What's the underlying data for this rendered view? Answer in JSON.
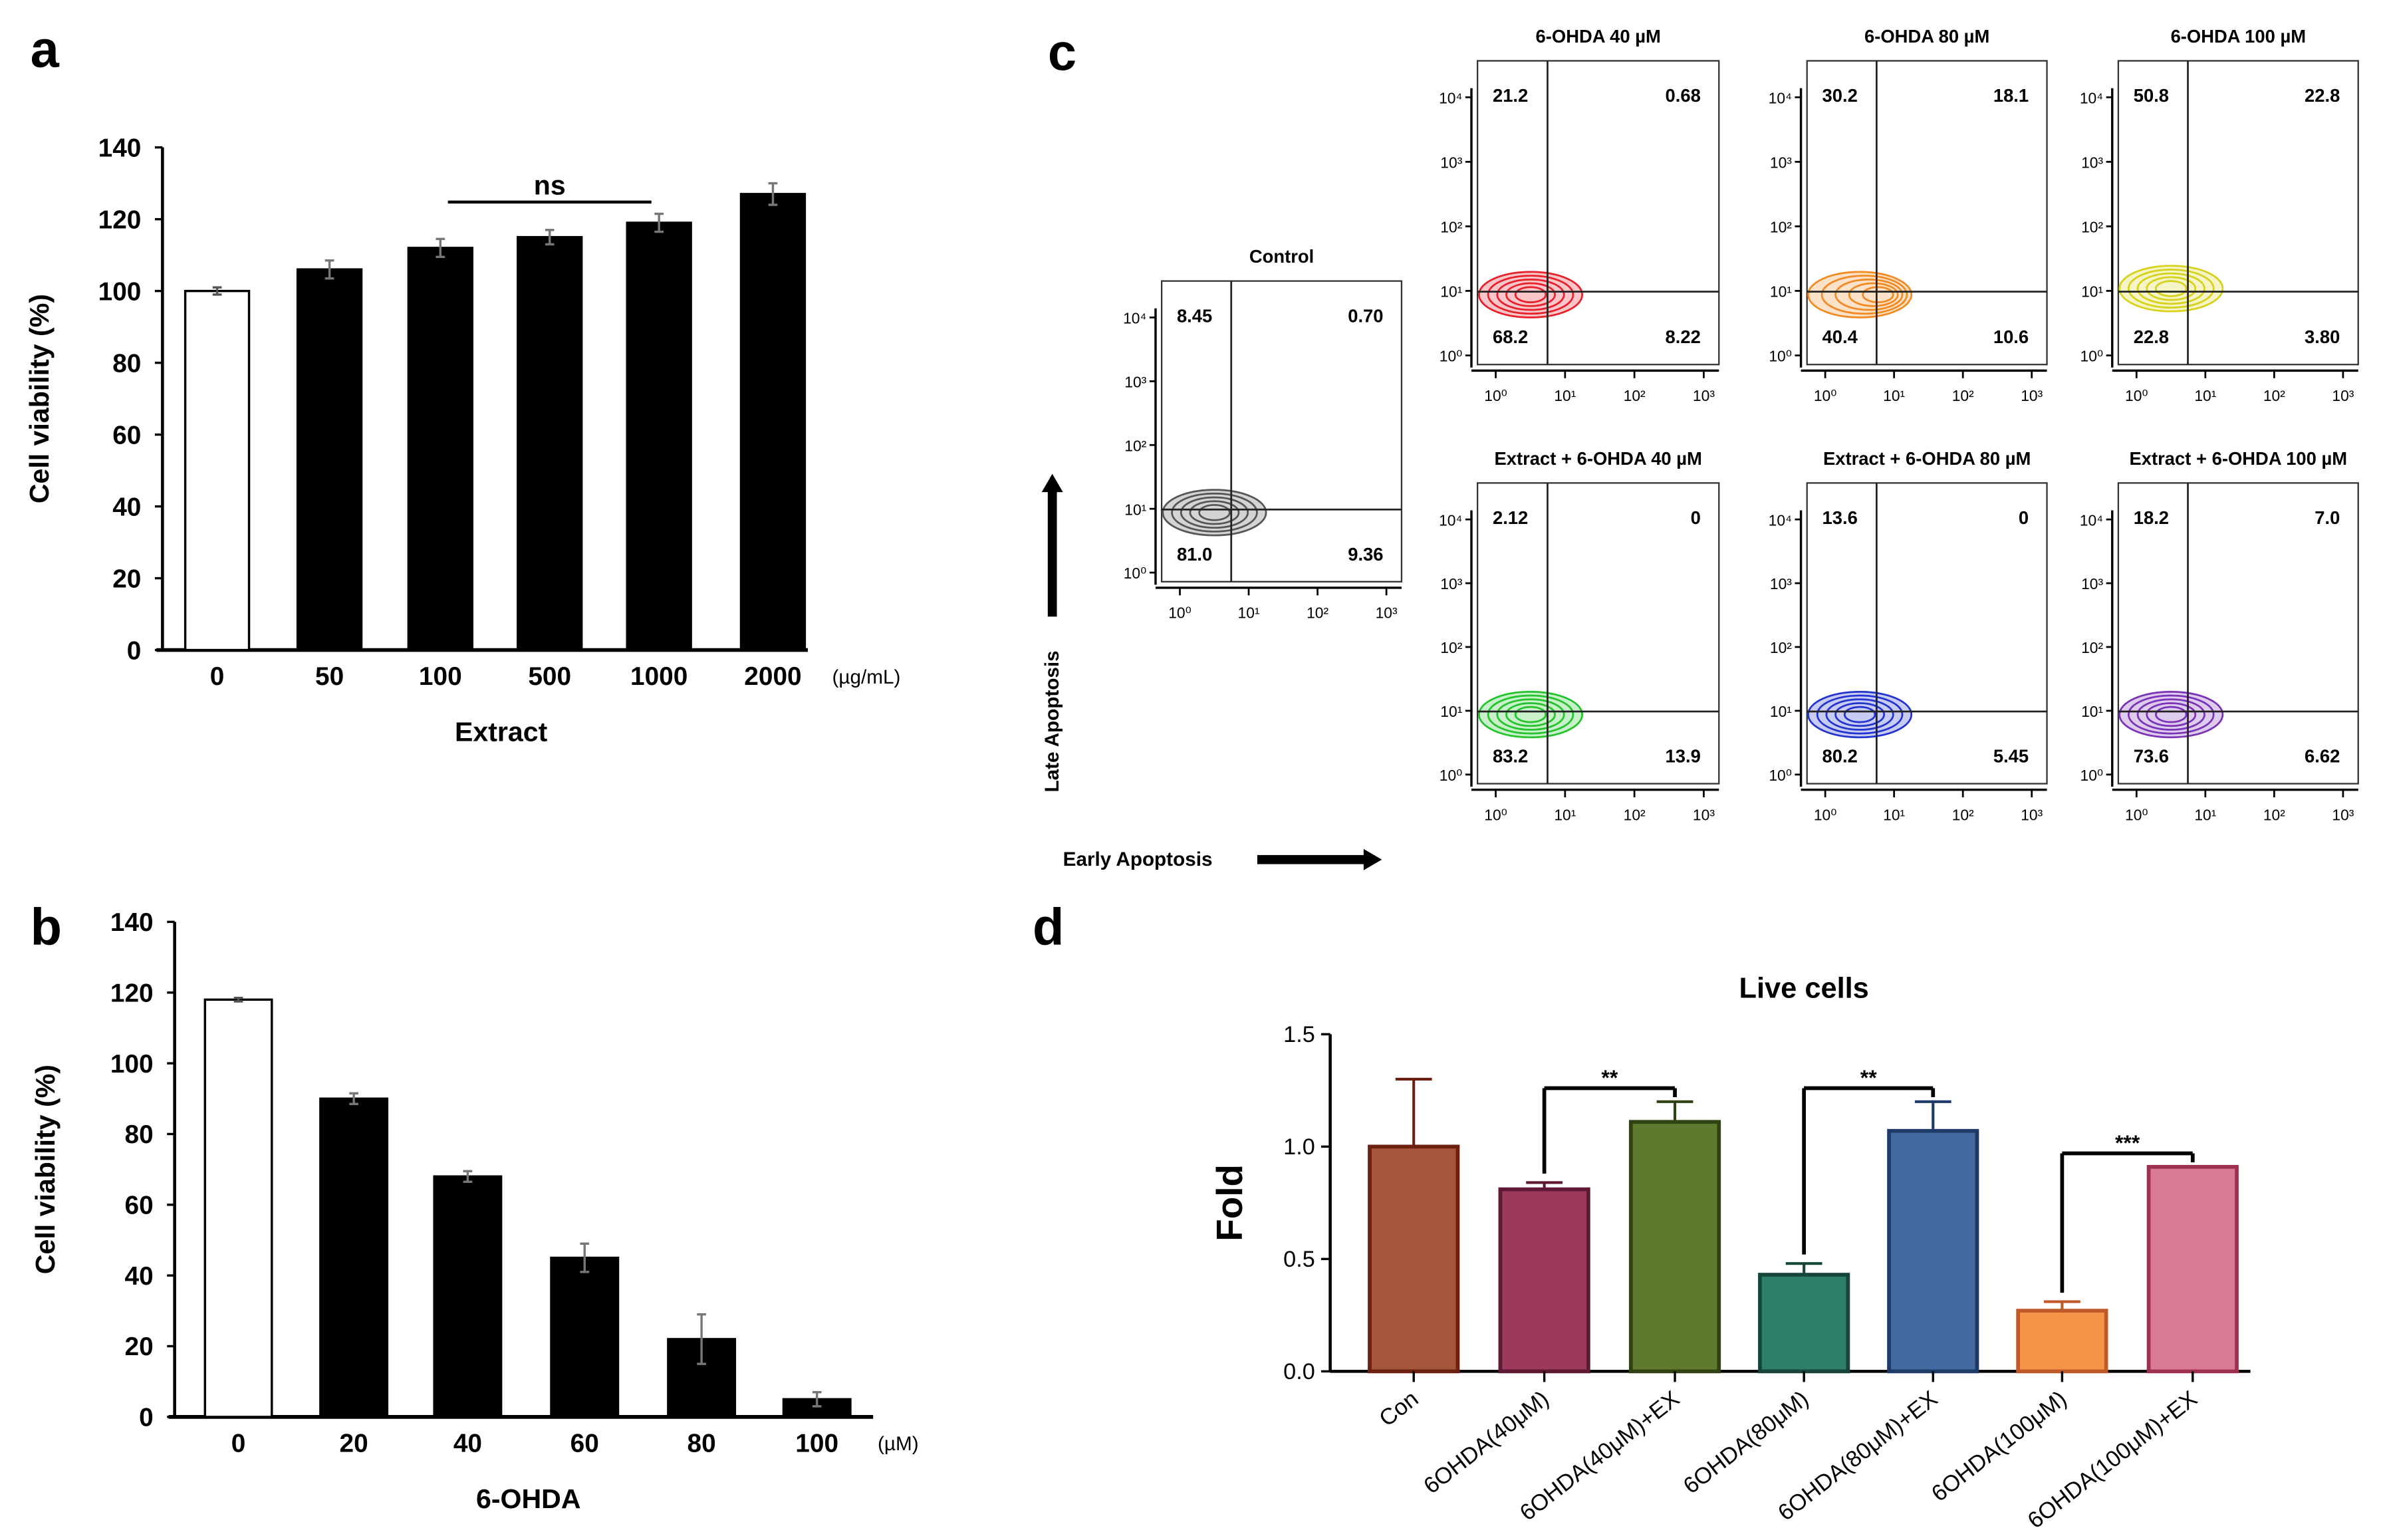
{
  "panel_labels": {
    "a": "a",
    "b": "b",
    "c": "c",
    "d": "d"
  },
  "chart_data": [
    {
      "id": "a",
      "type": "bar",
      "categories": [
        "0",
        "50",
        "100",
        "500",
        "1000",
        "2000"
      ],
      "values": [
        100,
        106,
        112,
        115,
        119,
        127
      ],
      "errors": [
        1,
        2.5,
        2.5,
        2,
        2.5,
        3
      ],
      "bar_colors": [
        "#ffffff",
        "#000000",
        "#000000",
        "#000000",
        "#000000",
        "#000000"
      ],
      "xlabel": "Extract",
      "unit": "(µg/mL)",
      "ylabel": "Cell viability (%)",
      "yticks": [
        "0",
        "20",
        "40",
        "60",
        "80",
        "100",
        "120",
        "140"
      ],
      "ylim": [
        0,
        140
      ],
      "annotation": {
        "label": "ns",
        "from": "100",
        "to": "1000"
      }
    },
    {
      "id": "b",
      "type": "bar",
      "categories": [
        "0",
        "20",
        "40",
        "60",
        "80",
        "100"
      ],
      "values": [
        118,
        90,
        68,
        45,
        22,
        5
      ],
      "errors": [
        0.5,
        1.5,
        1.5,
        4,
        7,
        2
      ],
      "bar_colors": [
        "#ffffff",
        "#000000",
        "#000000",
        "#000000",
        "#000000",
        "#000000"
      ],
      "xlabel": "6-OHDA",
      "unit": "(µM)",
      "ylabel": "Cell viability (%)",
      "yticks": [
        "0",
        "20",
        "40",
        "60",
        "80",
        "100",
        "120",
        "140"
      ],
      "ylim": [
        0,
        140
      ]
    },
    {
      "id": "c",
      "type": "scatter",
      "description_axes": {
        "y": "Late Apoptosis",
        "x": "Early Apoptosis"
      },
      "y_tick_labels": [
        "10⁰",
        "10¹",
        "10²",
        "10³",
        "10⁴"
      ],
      "x_tick_labels": [
        "10⁰",
        "10¹",
        "10²",
        "10³"
      ],
      "plots": [
        {
          "title": "Control",
          "color": "#555555",
          "quadrants": {
            "UL": "8.45",
            "UR": "0.70",
            "LL": "81.0",
            "LR": "9.36"
          }
        },
        {
          "title": "6-OHDA 40 µM",
          "color": "#e8202a",
          "quadrants": {
            "UL": "21.2",
            "UR": "0.68",
            "LL": "68.2",
            "LR": "8.22"
          }
        },
        {
          "title": "6-OHDA 80 µM",
          "color": "#f28a22",
          "quadrants": {
            "UL": "30.2",
            "UR": "18.1",
            "LL": "40.4",
            "LR": "10.6"
          }
        },
        {
          "title": "6-OHDA 100 µM",
          "color": "#d6d21a",
          "quadrants": {
            "UL": "50.8",
            "UR": "22.8",
            "LL": "22.8",
            "LR": "3.80"
          }
        },
        {
          "title": "Extract + 6-OHDA 40 µM",
          "color": "#22c42a",
          "quadrants": {
            "UL": "2.12",
            "UR": "0",
            "LL": "83.2",
            "LR": "13.9"
          }
        },
        {
          "title": "Extract + 6-OHDA 80 µM",
          "color": "#2233d0",
          "quadrants": {
            "UL": "13.6",
            "UR": "0",
            "LL": "80.2",
            "LR": "5.45"
          }
        },
        {
          "title": "Extract + 6-OHDA 100 µM",
          "color": "#7a32b8",
          "quadrants": {
            "UL": "18.2",
            "UR": "7.0",
            "LL": "73.6",
            "LR": "6.62"
          }
        }
      ]
    },
    {
      "id": "d",
      "type": "bar",
      "title": "Live cells",
      "ylabel": "Fold",
      "categories": [
        "Con",
        "6OHDA(40μM)",
        "6OHDA(40μM)+EX",
        "6OHDA(80μM)",
        "6OHDA(80μM)+EX",
        "6OHDA(100μM)",
        "6OHDA(100μM)+EX"
      ],
      "values": [
        1.0,
        0.81,
        1.11,
        0.43,
        1.07,
        0.27,
        0.91
      ],
      "errors": [
        0.3,
        0.03,
        0.09,
        0.05,
        0.13,
        0.04,
        0.0
      ],
      "bar_colors": [
        "#a5553a",
        "#9c3a5b",
        "#5f7a2e",
        "#2e7f6a",
        "#426aa0",
        "#f59447",
        "#d87a96"
      ],
      "border_colors": [
        "#6b2010",
        "#5e1a35",
        "#2f4312",
        "#16453a",
        "#1e3a66",
        "#c0592a",
        "#a0304f"
      ],
      "yticks": [
        "0.0",
        "0.5",
        "1.0",
        "1.5"
      ],
      "ylim": [
        0,
        1.5
      ],
      "significance": [
        {
          "from": 1,
          "to": 2,
          "label": "**"
        },
        {
          "from": 3,
          "to": 4,
          "label": "**"
        },
        {
          "from": 5,
          "to": 6,
          "label": "***"
        }
      ]
    }
  ]
}
